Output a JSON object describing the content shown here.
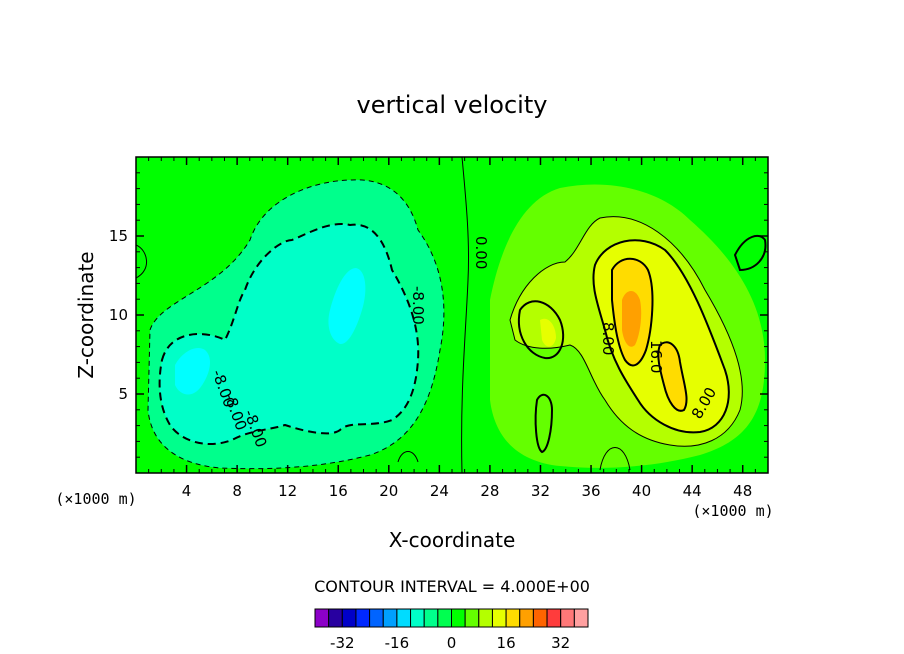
{
  "chart_data": {
    "type": "contour",
    "title": "vertical velocity",
    "xlabel": "X-coordinate",
    "ylabel": "Z-coordinate",
    "x_unit_left": "(×1000 m)",
    "x_unit_right": "(×1000 m)",
    "xlim": [
      0,
      50
    ],
    "ylim": [
      0,
      20
    ],
    "xticks": [
      4,
      8,
      12,
      16,
      20,
      24,
      28,
      32,
      36,
      40,
      44,
      48
    ],
    "yticks": [
      5,
      10,
      15
    ],
    "contour_interval_text": "CONTOUR INTERVAL = 4.000E+00",
    "contour_labels": [
      "-8.00",
      "-8.00",
      "-8.00",
      "-8.00",
      "0.00",
      "8.00",
      "16.0",
      "8.00"
    ],
    "colorbar": {
      "levels": [
        -36,
        -32,
        -28,
        -24,
        -20,
        -16,
        -12,
        -8,
        -4,
        0,
        4,
        8,
        12,
        16,
        20,
        24,
        28,
        32,
        36
      ],
      "colors": [
        "#8c00c8",
        "#2800a0",
        "#0000c8",
        "#0028ff",
        "#0064ff",
        "#00a0ff",
        "#00dcff",
        "#00ffc8",
        "#00ff8c",
        "#00ff50",
        "#00ff00",
        "#64ff00",
        "#b4ff00",
        "#e6ff00",
        "#ffdc00",
        "#ffa000",
        "#ff6400",
        "#ff3c3c",
        "#ff7878",
        "#ffa0a0"
      ],
      "tick_labels": [
        "-32",
        "-16",
        "0",
        "16",
        "32"
      ],
      "tick_values": [
        -32,
        -16,
        0,
        16,
        32
      ]
    },
    "background_color": "#00ff00",
    "features": [
      {
        "kind": "downdraft",
        "x_center": 16.5,
        "z_center": 10,
        "min_value": -16
      },
      {
        "kind": "downdraft",
        "x_center": 5,
        "z_center": 6,
        "min_value": -16
      },
      {
        "kind": "updraft",
        "x_center": 39.5,
        "z_center": 10,
        "max_value": 24
      },
      {
        "kind": "updraft",
        "x_center": 42.5,
        "z_center": 7,
        "max_value": 20
      }
    ]
  }
}
